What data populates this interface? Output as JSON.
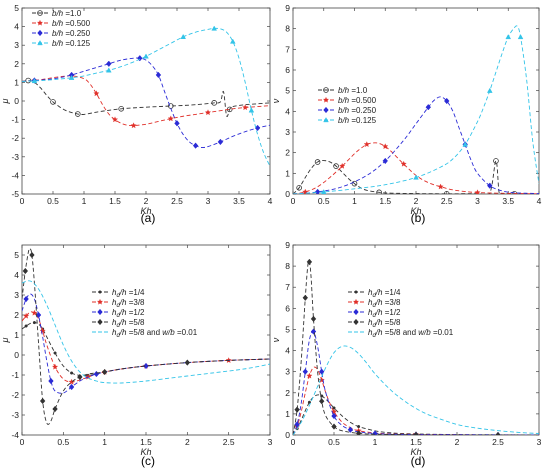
{
  "figure": {
    "panel_labels": [
      "(a)",
      "(b)",
      "(c)",
      "(d)"
    ]
  },
  "chart_data": [
    {
      "type": "line",
      "panel_label": "(a)",
      "xlabel": "Kh",
      "ylabel": "μ",
      "xlim": [
        0,
        4
      ],
      "ylim": [
        -5,
        5
      ],
      "xticks": [
        "0",
        "0.5",
        "1",
        "1.5",
        "2",
        "2.5",
        "3",
        "3.5",
        "4"
      ],
      "yticks": [
        "-5",
        "-4",
        "-3",
        "-2",
        "-1",
        "0",
        "1",
        "2",
        "3",
        "4",
        "5"
      ],
      "grid": false,
      "legend": "top-left",
      "series": [
        {
          "name": "b/h =1.0",
          "color": "#333333",
          "marker": "circle",
          "x": [
            0,
            0.1,
            0.2,
            0.3,
            0.4,
            0.5,
            0.6,
            0.7,
            0.8,
            0.9,
            1.0,
            1.2,
            1.4,
            1.6,
            1.8,
            2.0,
            2.2,
            2.4,
            2.6,
            2.8,
            3.0,
            3.1,
            3.2,
            3.25,
            3.3,
            3.35,
            3.4,
            3.6,
            3.8,
            4.0
          ],
          "y": [
            1.05,
            1.1,
            1.0,
            0.7,
            0.3,
            -0.05,
            -0.3,
            -0.5,
            -0.62,
            -0.7,
            -0.72,
            -0.6,
            -0.5,
            -0.42,
            -0.37,
            -0.33,
            -0.3,
            -0.27,
            -0.24,
            -0.2,
            -0.14,
            -0.1,
            -0.05,
            0.5,
            -0.8,
            -0.45,
            -0.3,
            -0.2,
            -0.15,
            -0.1
          ]
        },
        {
          "name": "b/h =0.500",
          "color": "#e0302a",
          "marker": "star",
          "x": [
            0,
            0.2,
            0.4,
            0.6,
            0.8,
            1.0,
            1.1,
            1.2,
            1.3,
            1.4,
            1.5,
            1.6,
            1.7,
            1.8,
            2.0,
            2.2,
            2.4,
            2.6,
            2.8,
            3.0,
            3.2,
            3.4,
            3.6,
            3.8,
            4.0
          ],
          "y": [
            1.05,
            1.1,
            1.2,
            1.3,
            1.35,
            1.2,
            0.9,
            0.4,
            -0.2,
            -0.7,
            -1.0,
            -1.2,
            -1.3,
            -1.32,
            -1.25,
            -1.1,
            -0.95,
            -0.82,
            -0.72,
            -0.62,
            -0.52,
            -0.42,
            -0.35,
            -0.3,
            -0.25
          ]
        },
        {
          "name": "b/h =0.250",
          "color": "#2b2bd6",
          "marker": "diamond",
          "x": [
            0,
            0.2,
            0.4,
            0.6,
            0.8,
            1.0,
            1.2,
            1.4,
            1.6,
            1.8,
            1.9,
            2.0,
            2.1,
            2.2,
            2.3,
            2.4,
            2.5,
            2.6,
            2.7,
            2.8,
            2.9,
            3.0,
            3.2,
            3.4,
            3.6,
            3.8,
            4.0
          ],
          "y": [
            1.05,
            1.1,
            1.15,
            1.25,
            1.4,
            1.6,
            1.8,
            2.0,
            2.2,
            2.3,
            2.3,
            2.2,
            1.9,
            1.4,
            0.5,
            -0.4,
            -1.2,
            -1.8,
            -2.2,
            -2.4,
            -2.5,
            -2.45,
            -2.2,
            -1.9,
            -1.65,
            -1.45,
            -1.3
          ]
        },
        {
          "name": "b/h =0.125",
          "color": "#33c4e8",
          "marker": "triangle",
          "x": [
            0,
            0.2,
            0.4,
            0.6,
            0.8,
            1.0,
            1.2,
            1.4,
            1.6,
            1.8,
            2.0,
            2.2,
            2.4,
            2.6,
            2.8,
            3.0,
            3.1,
            3.2,
            3.3,
            3.4,
            3.5,
            3.6,
            3.7,
            3.8,
            3.9,
            4.0
          ],
          "y": [
            1.05,
            1.08,
            1.12,
            1.18,
            1.25,
            1.35,
            1.5,
            1.65,
            1.85,
            2.1,
            2.4,
            2.75,
            3.1,
            3.45,
            3.7,
            3.85,
            3.9,
            3.88,
            3.7,
            3.2,
            2.3,
            1.0,
            -0.5,
            -1.8,
            -2.8,
            -3.5
          ]
        }
      ]
    },
    {
      "type": "line",
      "panel_label": "(b)",
      "xlabel": "Kh",
      "ylabel": "ν",
      "xlim": [
        0,
        4
      ],
      "ylim": [
        0,
        9
      ],
      "xticks": [
        "0",
        "0.5",
        "1",
        "1.5",
        "2",
        "2.5",
        "3",
        "3.5",
        "4"
      ],
      "yticks": [
        "0",
        "1",
        "2",
        "3",
        "4",
        "5",
        "6",
        "7",
        "8",
        "9"
      ],
      "grid": false,
      "legend": "top-left",
      "series": [
        {
          "name": "b/h =1.0",
          "color": "#333333",
          "marker": "circle",
          "x": [
            0,
            0.1,
            0.2,
            0.3,
            0.4,
            0.5,
            0.6,
            0.7,
            0.8,
            0.9,
            1.0,
            1.1,
            1.2,
            1.4,
            1.6,
            2.0,
            2.5,
            3.0,
            3.2,
            3.3,
            3.35,
            3.4,
            3.6,
            4.0
          ],
          "y": [
            0.0,
            0.3,
            0.8,
            1.25,
            1.55,
            1.62,
            1.55,
            1.35,
            1.05,
            0.75,
            0.5,
            0.3,
            0.18,
            0.08,
            0.04,
            0.02,
            0.01,
            0.02,
            0.05,
            1.6,
            0.1,
            0.02,
            0.01,
            0.0
          ]
        },
        {
          "name": "b/h =0.500",
          "color": "#e0302a",
          "marker": "star",
          "x": [
            0,
            0.2,
            0.4,
            0.6,
            0.8,
            1.0,
            1.1,
            1.2,
            1.3,
            1.4,
            1.5,
            1.6,
            1.7,
            1.8,
            2.0,
            2.2,
            2.4,
            2.6,
            2.8,
            3.0,
            3.5,
            4.0
          ],
          "y": [
            0.0,
            0.1,
            0.35,
            0.8,
            1.35,
            1.95,
            2.2,
            2.4,
            2.47,
            2.45,
            2.3,
            2.05,
            1.75,
            1.45,
            0.9,
            0.55,
            0.35,
            0.2,
            0.12,
            0.07,
            0.03,
            0.01
          ]
        },
        {
          "name": "b/h =0.250",
          "color": "#2b2bd6",
          "marker": "diamond",
          "x": [
            0,
            0.4,
            0.8,
            1.2,
            1.5,
            1.8,
            2.0,
            2.2,
            2.3,
            2.4,
            2.5,
            2.6,
            2.7,
            2.8,
            2.9,
            3.0,
            3.2,
            3.4,
            3.6,
            4.0
          ],
          "y": [
            0.0,
            0.1,
            0.35,
            0.9,
            1.6,
            2.6,
            3.4,
            4.2,
            4.55,
            4.7,
            4.5,
            4.0,
            3.2,
            2.4,
            1.6,
            1.0,
            0.4,
            0.15,
            0.06,
            0.02
          ]
        },
        {
          "name": "b/h =0.125",
          "color": "#33c4e8",
          "marker": "triangle",
          "x": [
            0,
            0.5,
            1.0,
            1.5,
            2.0,
            2.4,
            2.6,
            2.8,
            3.0,
            3.1,
            3.2,
            3.3,
            3.4,
            3.5,
            3.6,
            3.65,
            3.7,
            3.8,
            3.9,
            4.0
          ],
          "y": [
            0.0,
            0.1,
            0.25,
            0.45,
            0.8,
            1.3,
            1.7,
            2.4,
            3.5,
            4.2,
            5.0,
            5.9,
            6.8,
            7.6,
            8.05,
            8.1,
            7.6,
            5.5,
            2.5,
            0.5
          ]
        }
      ]
    },
    {
      "type": "line",
      "panel_label": "(c)",
      "xlabel": "Kh",
      "ylabel": "μ",
      "xlim": [
        0,
        3
      ],
      "ylim": [
        -4,
        5.5
      ],
      "xticks": [
        "0",
        "0.5",
        "1",
        "1.5",
        "2",
        "2.5",
        "3"
      ],
      "yticks": [
        "-4",
        "-3",
        "-2",
        "-1",
        "0",
        "1",
        "2",
        "3",
        "4",
        "5"
      ],
      "grid": false,
      "legend": "center-right",
      "series": [
        {
          "name": "h_d/h =1/4",
          "color": "#333333",
          "marker": "dot",
          "x": [
            0.0,
            0.05,
            0.1,
            0.15,
            0.2,
            0.25,
            0.3,
            0.4,
            0.5,
            0.6,
            0.7,
            0.8,
            0.9,
            1.0,
            1.2,
            1.5,
            2.0,
            2.5,
            3.0
          ],
          "y": [
            1.3,
            1.45,
            1.58,
            1.62,
            1.55,
            1.3,
            0.9,
            0.1,
            -0.55,
            -0.9,
            -1.02,
            -1.02,
            -0.95,
            -0.85,
            -0.7,
            -0.55,
            -0.38,
            -0.27,
            -0.2
          ]
        },
        {
          "name": "h_d/h =3/8",
          "color": "#e0302a",
          "marker": "star",
          "x": [
            0.0,
            0.05,
            0.1,
            0.15,
            0.2,
            0.25,
            0.3,
            0.4,
            0.5,
            0.6,
            0.7,
            0.8,
            0.9,
            1.0,
            1.2,
            1.5,
            2.0,
            2.5,
            3.0
          ],
          "y": [
            1.7,
            1.95,
            2.15,
            2.1,
            1.8,
            1.2,
            0.5,
            -0.6,
            -1.2,
            -1.35,
            -1.25,
            -1.1,
            -0.95,
            -0.85,
            -0.7,
            -0.55,
            -0.38,
            -0.27,
            -0.2
          ]
        },
        {
          "name": "h_d/h =1/2",
          "color": "#2b2bd6",
          "marker": "diamond",
          "x": [
            0.0,
            0.05,
            0.1,
            0.15,
            0.2,
            0.25,
            0.3,
            0.35,
            0.4,
            0.5,
            0.6,
            0.7,
            0.8,
            0.9,
            1.0,
            1.2,
            1.5,
            2.0,
            2.5,
            3.0
          ],
          "y": [
            2.2,
            2.8,
            3.05,
            2.8,
            2.0,
            0.9,
            -0.3,
            -1.3,
            -1.8,
            -1.9,
            -1.6,
            -1.3,
            -1.1,
            -0.95,
            -0.85,
            -0.7,
            -0.55,
            -0.38,
            -0.27,
            -0.2
          ]
        },
        {
          "name": "h_d/h =5/8",
          "color": "#333333",
          "marker": "diamond",
          "x": [
            0.0,
            0.04,
            0.08,
            0.1,
            0.12,
            0.15,
            0.2,
            0.25,
            0.3,
            0.35,
            0.4,
            0.5,
            0.6,
            0.7,
            0.8,
            0.9,
            1.0,
            1.2,
            1.5,
            2.0,
            2.5,
            3.0
          ],
          "y": [
            2.8,
            4.2,
            5.2,
            5.3,
            5.0,
            3.6,
            0.6,
            -2.3,
            -3.4,
            -3.3,
            -2.7,
            -1.8,
            -1.35,
            -1.1,
            -0.95,
            -0.9,
            -0.85,
            -0.7,
            -0.55,
            -0.38,
            -0.27,
            -0.2
          ]
        },
        {
          "name": "h_d/h =5/8 and  w/b =0.01",
          "color": "#33c4e8",
          "marker": "none",
          "x": [
            0.0,
            0.1,
            0.2,
            0.3,
            0.4,
            0.5,
            0.6,
            0.7,
            0.8,
            0.9,
            1.0,
            1.2,
            1.5,
            1.8,
            2.0,
            2.3,
            2.6,
            2.8,
            3.0
          ],
          "y": [
            3.6,
            3.7,
            3.3,
            2.5,
            1.5,
            0.5,
            -0.3,
            -0.85,
            -1.15,
            -1.3,
            -1.38,
            -1.4,
            -1.3,
            -1.15,
            -1.05,
            -0.9,
            -0.75,
            -0.62,
            -0.45
          ]
        }
      ]
    },
    {
      "type": "line",
      "panel_label": "(d)",
      "xlabel": "Kh",
      "ylabel": "ν",
      "xlim": [
        0,
        3
      ],
      "ylim": [
        0,
        9
      ],
      "xticks": [
        "0",
        "0.5",
        "1",
        "1.5",
        "2",
        "2.5",
        "3"
      ],
      "yticks": [
        "0",
        "1",
        "2",
        "3",
        "4",
        "5",
        "6",
        "7",
        "8",
        "9"
      ],
      "grid": false,
      "legend": "top-right",
      "series": [
        {
          "name": "h_d/h =1/4",
          "color": "#333333",
          "marker": "dot",
          "x": [
            0.0,
            0.05,
            0.1,
            0.15,
            0.2,
            0.25,
            0.3,
            0.35,
            0.4,
            0.45,
            0.5,
            0.6,
            0.7,
            0.8,
            1.0,
            1.2,
            1.5,
            2.0,
            2.5,
            3.0
          ],
          "y": [
            0.0,
            0.3,
            0.7,
            1.15,
            1.55,
            1.8,
            1.9,
            1.85,
            1.7,
            1.5,
            1.28,
            0.9,
            0.6,
            0.4,
            0.2,
            0.1,
            0.05,
            0.02,
            0.01,
            0.0
          ]
        },
        {
          "name": "h_d/h =3/8",
          "color": "#e0302a",
          "marker": "star",
          "x": [
            0.0,
            0.05,
            0.1,
            0.15,
            0.2,
            0.25,
            0.3,
            0.35,
            0.4,
            0.45,
            0.5,
            0.6,
            0.7,
            0.8,
            1.0,
            1.2,
            1.5,
            2.0,
            2.5,
            3.0
          ],
          "y": [
            0.0,
            0.4,
            1.1,
            2.0,
            2.8,
            3.2,
            3.1,
            2.6,
            2.0,
            1.5,
            1.1,
            0.6,
            0.35,
            0.2,
            0.1,
            0.05,
            0.03,
            0.01,
            0.0,
            0.0
          ]
        },
        {
          "name": "h_d/h =1/2",
          "color": "#2b2bd6",
          "marker": "diamond",
          "x": [
            0.0,
            0.05,
            0.1,
            0.15,
            0.2,
            0.25,
            0.3,
            0.35,
            0.4,
            0.5,
            0.6,
            0.7,
            0.8,
            1.0,
            1.2,
            1.5,
            2.0,
            2.5,
            3.0
          ],
          "y": [
            0.0,
            0.5,
            1.5,
            3.0,
            4.5,
            4.9,
            4.2,
            3.0,
            2.0,
            0.9,
            0.45,
            0.25,
            0.15,
            0.07,
            0.04,
            0.02,
            0.01,
            0.0,
            0.0
          ]
        },
        {
          "name": "h_d/h =5/8",
          "color": "#333333",
          "marker": "diamond",
          "x": [
            0.0,
            0.05,
            0.1,
            0.15,
            0.18,
            0.2,
            0.22,
            0.25,
            0.3,
            0.35,
            0.4,
            0.5,
            0.6,
            0.8,
            1.0,
            1.5,
            2.0,
            2.5,
            3.0
          ],
          "y": [
            0.0,
            1.2,
            3.5,
            6.5,
            8.0,
            8.2,
            7.5,
            5.5,
            3.0,
            1.6,
            0.9,
            0.4,
            0.2,
            0.08,
            0.04,
            0.01,
            0.0,
            0.0,
            0.0
          ]
        },
        {
          "name": "h_d/h =5/8 and  w/b =0.01",
          "color": "#33c4e8",
          "marker": "none",
          "x": [
            0.0,
            0.1,
            0.2,
            0.3,
            0.4,
            0.5,
            0.6,
            0.7,
            0.8,
            0.9,
            1.0,
            1.2,
            1.4,
            1.6,
            1.8,
            2.0,
            2.2,
            2.4,
            2.6,
            2.8,
            3.0
          ],
          "y": [
            0.0,
            0.6,
            1.4,
            2.3,
            3.2,
            3.9,
            4.2,
            4.15,
            3.85,
            3.4,
            2.9,
            2.1,
            1.5,
            1.05,
            0.75,
            0.5,
            0.35,
            0.25,
            0.17,
            0.11,
            0.07
          ]
        }
      ]
    }
  ]
}
